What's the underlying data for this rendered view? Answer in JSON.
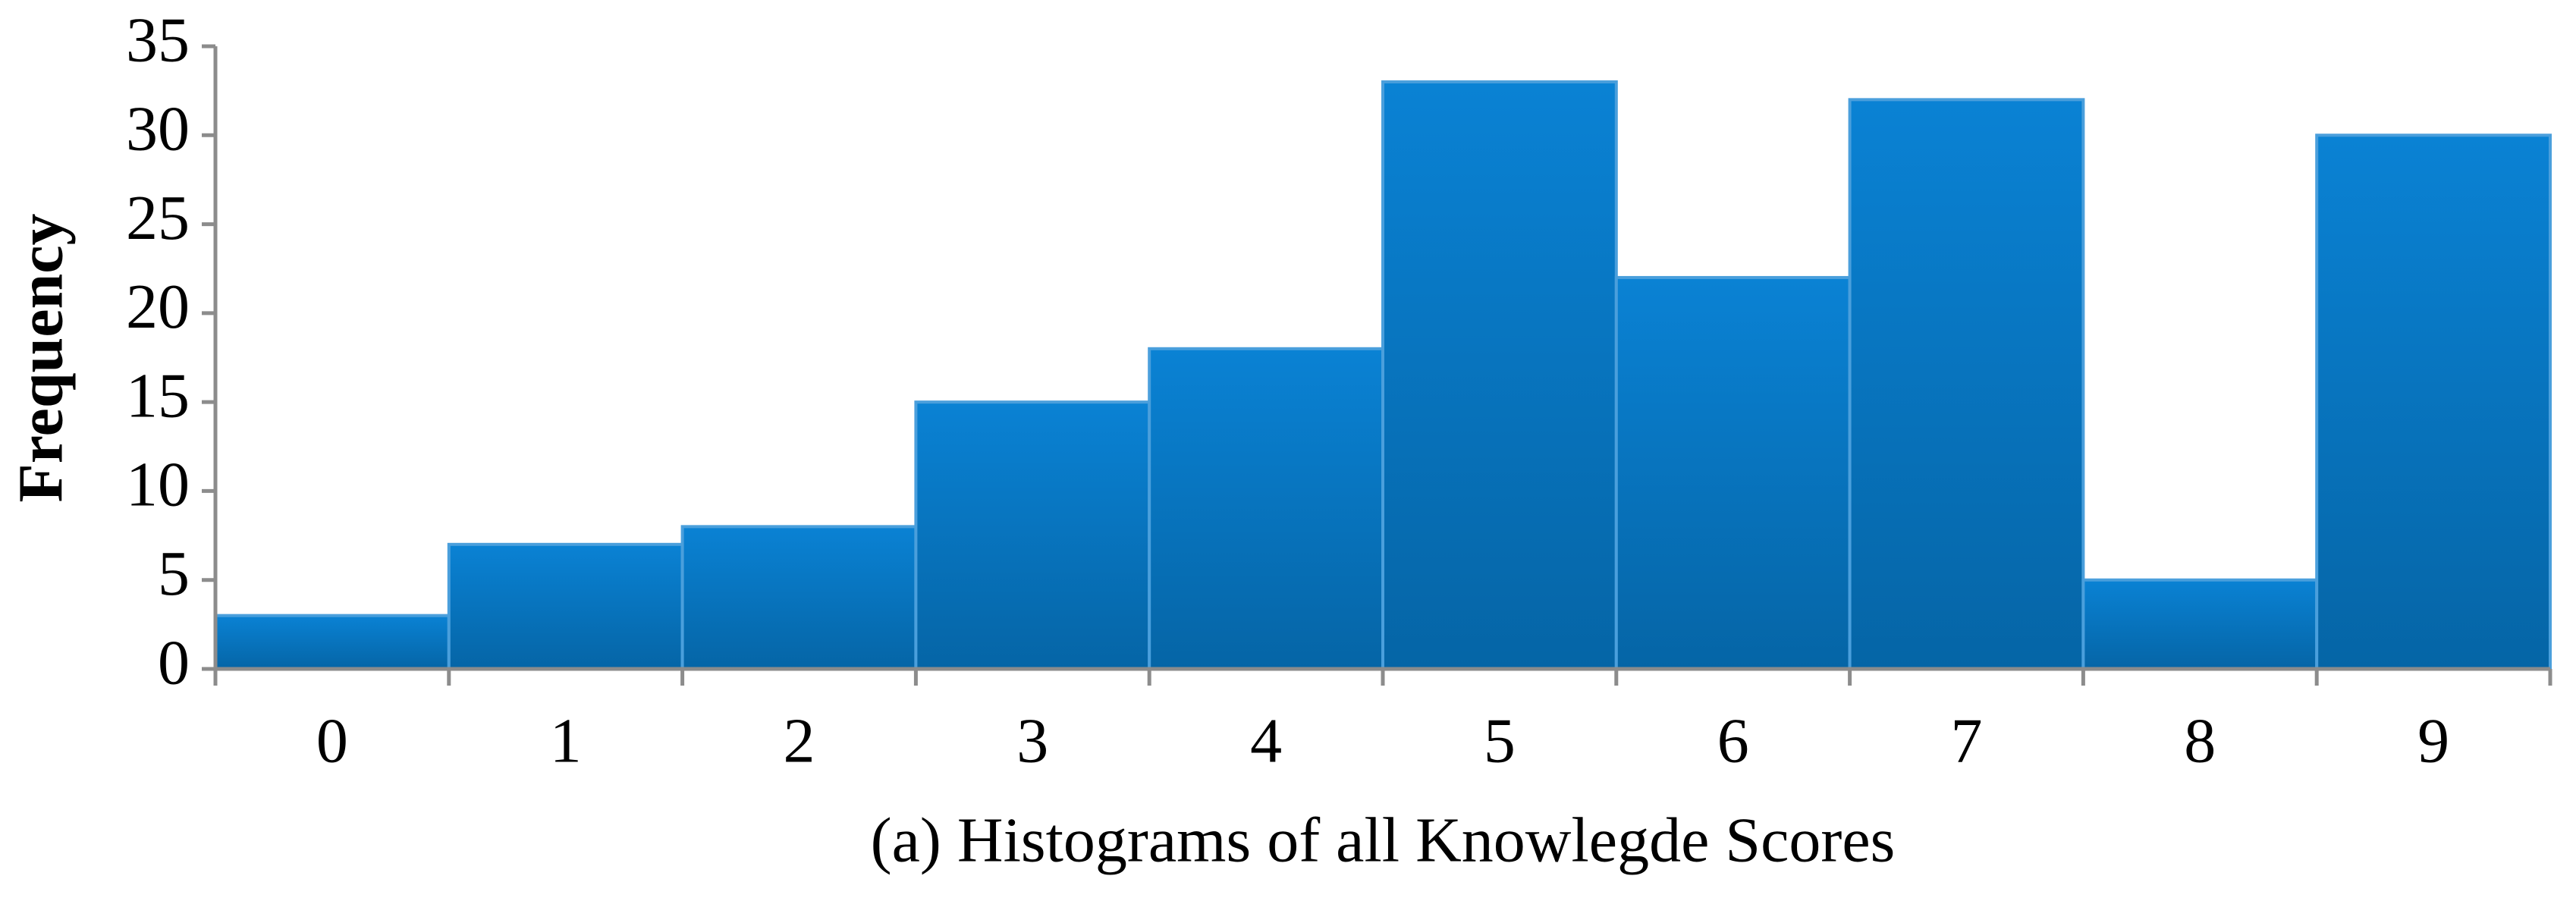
{
  "chart_data": {
    "type": "bar",
    "xlabel": "(a) Histograms of all Knowlegde Scores",
    "ylabel": "Frequency",
    "categories": [
      "0",
      "1",
      "2",
      "3",
      "4",
      "5",
      "6",
      "7",
      "8",
      "9"
    ],
    "values": [
      3,
      7,
      8,
      15,
      18,
      33,
      22,
      32,
      5,
      30
    ],
    "color": "#0572c0",
    "ylim": [
      0,
      35
    ],
    "yticks": [
      0,
      5,
      10,
      15,
      20,
      25,
      30,
      35
    ],
    "grid": false
  }
}
